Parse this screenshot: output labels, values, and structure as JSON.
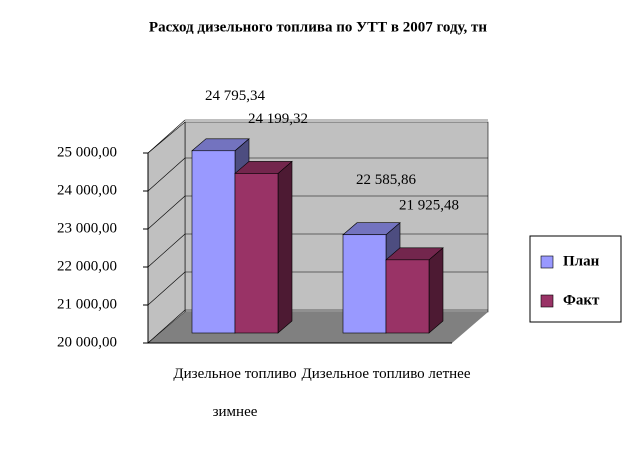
{
  "chart_data": {
    "type": "bar3d",
    "title": "Расход дизельного топлива по УТТ в 2007 году, тн",
    "categories": [
      "Дизельное топливо зимнее",
      "Дизельное топливо летнее"
    ],
    "series": [
      {
        "name": "План",
        "color": "#9999ff",
        "values": [
          24795.34,
          22585.86
        ],
        "value_labels": [
          "24 795,34",
          "22 585,86"
        ]
      },
      {
        "name": "Факт",
        "color": "#993366",
        "values": [
          24199.32,
          21925.48
        ],
        "value_labels": [
          "24 199,32",
          "21 925,48"
        ]
      }
    ],
    "ylim": [
      20000,
      25000
    ],
    "yticks": [
      {
        "value": 20000,
        "label": "20 000,00"
      },
      {
        "value": 21000,
        "label": "21 000,00"
      },
      {
        "value": 22000,
        "label": "22 000,00"
      },
      {
        "value": 23000,
        "label": "23 000,00"
      },
      {
        "value": 24000,
        "label": "24 000,00"
      },
      {
        "value": 25000,
        "label": "25 000,00"
      }
    ],
    "grid": true,
    "legend": "right"
  }
}
